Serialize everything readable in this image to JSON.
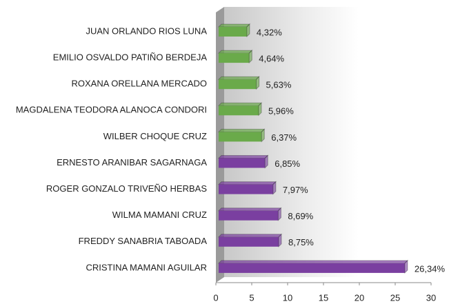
{
  "chart_data": {
    "type": "bar",
    "orientation": "horizontal",
    "categories": [
      "JUAN ORLANDO RIOS LUNA",
      "EMILIO OSVALDO PATIÑO BERDEJA",
      "ROXANA ORELLANA MERCADO",
      "MAGDALENA TEODORA ALANOCA CONDORI",
      "WILBER CHOQUE CRUZ",
      "ERNESTO ARANIBAR SAGARNAGA",
      "ROGER GONZALO TRIVEÑO HERBAS",
      "WILMA MAMANI CRUZ",
      "FREDDY SANABRIA TABOADA",
      "CRISTINA MAMANI AGUILAR"
    ],
    "values": [
      4.32,
      4.64,
      5.63,
      5.96,
      6.37,
      6.85,
      7.97,
      8.69,
      8.75,
      26.34
    ],
    "value_labels": [
      "4,32%",
      "4,64%",
      "5,63%",
      "5,96%",
      "6,37%",
      "6,85%",
      "7,97%",
      "8,69%",
      "8,75%",
      "26,34%"
    ],
    "colors": [
      "#6aaa4a",
      "#6aaa4a",
      "#6aaa4a",
      "#6aaa4a",
      "#6aaa4a",
      "#7a3fa0",
      "#7a3fa0",
      "#7a3fa0",
      "#7a3fa0",
      "#7a3fa0"
    ],
    "xlim": [
      0,
      30
    ],
    "xticks": [
      0,
      5,
      10,
      15,
      20,
      25,
      30
    ]
  }
}
